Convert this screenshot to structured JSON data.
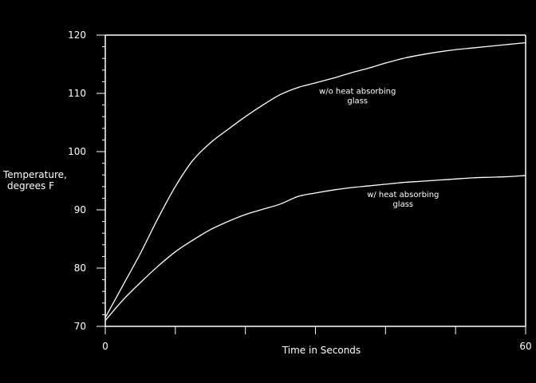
{
  "chart_data": {
    "type": "line",
    "title": "",
    "xlabel": "Time in Seconds",
    "ylabel_lines": [
      "Temperature,",
      "degrees F"
    ],
    "xlim": [
      0,
      60
    ],
    "ylim": [
      70,
      120
    ],
    "x_ticks_labeled": [
      0,
      60
    ],
    "y_ticks_labeled": [
      70,
      80,
      90,
      100,
      110,
      120
    ],
    "x_tick_labels": [
      "0",
      "60"
    ],
    "y_tick_labels": [
      "70",
      "80",
      "90",
      "100",
      "110",
      "120"
    ],
    "grid": false,
    "legend": "none",
    "line_color": "#ffffff",
    "background_color": "#000000",
    "series": [
      {
        "x": [
          0,
          2.5,
          5,
          7.5,
          10,
          12.5,
          15,
          17.5,
          20,
          22.5,
          25,
          27.5,
          30,
          32.5,
          35,
          37.5,
          40,
          42.5,
          45,
          47.5,
          50,
          52.5,
          55,
          57.5,
          60
        ],
        "y": [
          71.5,
          77,
          82.5,
          88.5,
          94,
          98.5,
          101.5,
          103.8,
          106,
          108,
          109.8,
          111,
          111.8,
          112.6,
          113.5,
          114.3,
          115.2,
          116,
          116.6,
          117.1,
          117.5,
          117.8,
          118.1,
          118.4,
          118.7
        ]
      },
      {
        "x": [
          0,
          2.5,
          5,
          7.5,
          10,
          12.5,
          15,
          17.5,
          20,
          22.5,
          25,
          27.5,
          30,
          32.5,
          35,
          37.5,
          40,
          42.5,
          45,
          47.5,
          50,
          52.5,
          55,
          57.5,
          60
        ],
        "y": [
          71,
          74.5,
          77.5,
          80.3,
          82.8,
          84.8,
          86.6,
          88,
          89.2,
          90.1,
          91,
          92.3,
          92.9,
          93.4,
          93.8,
          94.1,
          94.4,
          94.7,
          94.9,
          95.1,
          95.3,
          95.5,
          95.6,
          95.7,
          95.9
        ]
      }
    ],
    "annotations": [
      {
        "lines": [
          "w/o heat absorbing",
          "glass"
        ],
        "x": 36,
        "y": 109.9
      },
      {
        "lines": [
          "w/ heat absorbing",
          "glass"
        ],
        "x": 42.5,
        "y": 92.2
      }
    ]
  }
}
